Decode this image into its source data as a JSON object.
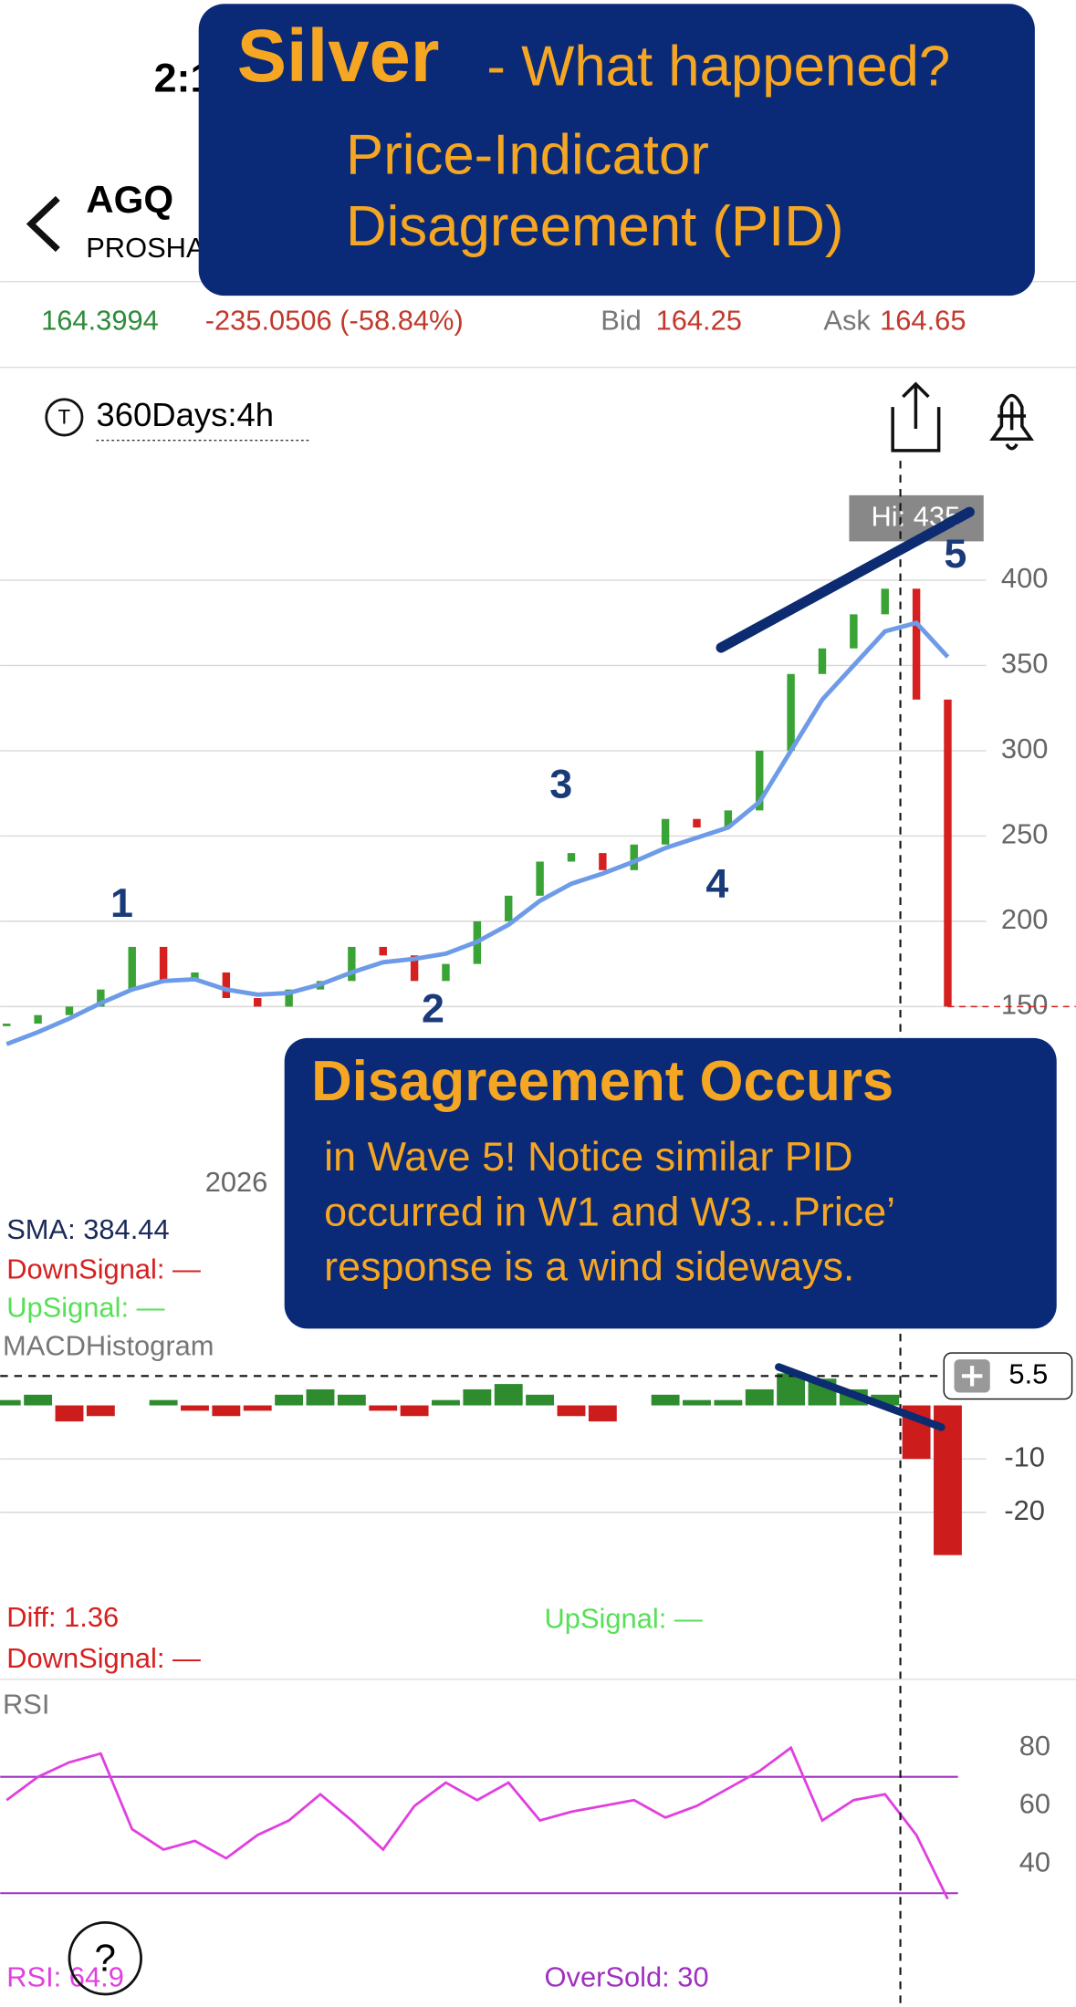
{
  "status": {
    "time": "2:1"
  },
  "header": {
    "symbol": "AGQ",
    "name": "PROSHARES"
  },
  "quote": {
    "last": "164.3994",
    "change": "-235.0506 (-58.84%)",
    "bid_label": "Bid",
    "bid": "164.25",
    "ask_label": "Ask",
    "ask": "164.65"
  },
  "toolbar": {
    "period": "360Days:4h",
    "icon": "T",
    "help": "?"
  },
  "title_box": {
    "headline": "Silver",
    "subhead": "- What happened?",
    "line1": "Price-Indicator",
    "line2": "Disagreement (PID)"
  },
  "note_box": {
    "headline": "Disagreement Occurs",
    "lines": [
      "in Wave 5!  Notice similar PID",
      "occurred in W1 and W3…Price’",
      "response is a wind sideways."
    ]
  },
  "chart_data": [
    {
      "type": "candlestick",
      "x_label": "2026",
      "high_label": "Hi: 435",
      "ylim": [
        70,
        470
      ],
      "yticks": [
        400,
        350,
        300,
        250,
        200,
        150
      ],
      "values": [
        140,
        145,
        150,
        160,
        185,
        165,
        170,
        155,
        150,
        160,
        165,
        185,
        180,
        165,
        175,
        200,
        215,
        235,
        240,
        230,
        245,
        260,
        255,
        265,
        300,
        345,
        360,
        380,
        395,
        330,
        150
      ],
      "sma_values": [
        128,
        135,
        143,
        152,
        160,
        165,
        166,
        160,
        157,
        158,
        163,
        170,
        176,
        178,
        181,
        188,
        198,
        212,
        222,
        228,
        235,
        243,
        249,
        255,
        270,
        300,
        330,
        350,
        370,
        375,
        355
      ],
      "up_color": "#3aa335",
      "down_color": "#d62020",
      "sma_color": "#6e9be8",
      "annotations": [
        "1",
        "2",
        "3",
        "4",
        "5"
      ],
      "legend": [
        "SMA: 384.44",
        "DownSignal: —",
        "UpSignal: —"
      ]
    },
    {
      "type": "bar",
      "title": "MACDHistogram",
      "ylim": [
        -34,
        6.7
      ],
      "yticks": [
        -10,
        -20
      ],
      "current": 5.5,
      "values": [
        1,
        2,
        -3,
        -2,
        0,
        1,
        -1,
        -2,
        -1,
        2,
        3,
        2,
        -1,
        -2,
        1,
        3,
        4,
        2,
        -2,
        -3,
        0,
        2,
        1,
        1,
        3,
        6,
        5,
        3,
        2,
        -10,
        -28
      ],
      "up_color": "#2e8b2e",
      "down_color": "#cc1c1c",
      "legend": [
        "Diff: 1.36",
        "UpSignal: —",
        "DownSignal: —"
      ]
    },
    {
      "type": "line",
      "title": "RSI",
      "ylim": [
        12,
        100
      ],
      "yticks": [
        80,
        60,
        40
      ],
      "levels": [
        70,
        30
      ],
      "values": [
        62,
        70,
        75,
        78,
        52,
        45,
        48,
        42,
        50,
        55,
        64,
        55,
        45,
        60,
        68,
        62,
        68,
        55,
        58,
        60,
        62,
        56,
        60,
        66,
        72,
        80,
        55,
        62,
        64,
        50,
        28
      ],
      "color": "#e040e0",
      "level_color": "#a030c0",
      "legend": [
        "RSI: 64.9",
        "OverSold: 30"
      ]
    }
  ]
}
